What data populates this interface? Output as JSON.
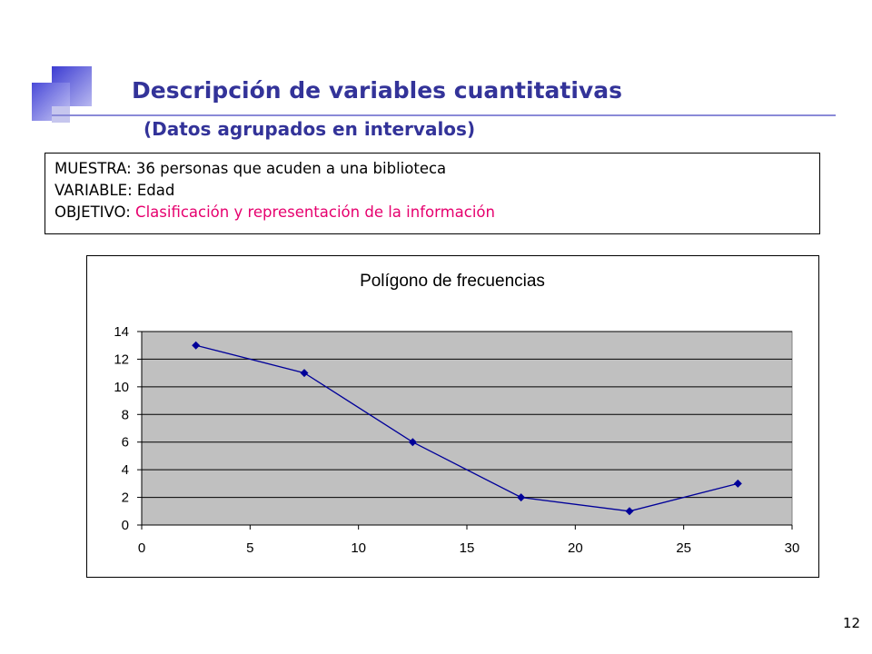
{
  "slide": {
    "title": "Descripción de variables cuantitativas",
    "subtitle": "(Datos agrupados en intervalos)",
    "page_number": "12"
  },
  "info": {
    "line1": "MUESTRA: 36 personas que acuden a una biblioteca",
    "line2": "VARIABLE: Edad",
    "line3_label": "OBJETIVO: ",
    "line3_value": "Clasificación y representación de la información",
    "highlight_color": "#e6006e"
  },
  "chart_data": {
    "type": "line",
    "title": "Polígono de frecuencias",
    "xlabel": "",
    "ylabel": "",
    "x": [
      2.5,
      7.5,
      12.5,
      17.5,
      22.5,
      27.5
    ],
    "series": [
      {
        "values": [
          13,
          11,
          6,
          2,
          1,
          3
        ]
      }
    ],
    "xlim": [
      0,
      30
    ],
    "ylim": [
      0,
      14
    ],
    "xticks": [
      0,
      5,
      10,
      15,
      20,
      25,
      30
    ],
    "yticks": [
      0,
      2,
      4,
      6,
      8,
      10,
      12,
      14
    ],
    "grid": "horizontal",
    "legend": "none",
    "colors": {
      "line": "#000099",
      "marker": "#000099",
      "plot_background": "#c0c0c0",
      "gridline": "#000000"
    }
  }
}
